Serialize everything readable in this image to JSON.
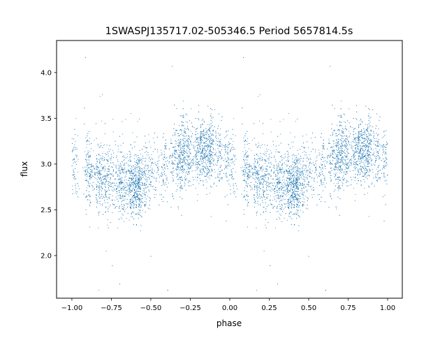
{
  "chart_data": {
    "type": "scatter",
    "title": "1SWASPJ135717.02-505346.5 Period 5657814.5s",
    "xlabel": "phase",
    "ylabel": "flux",
    "xlim": [
      -1.097,
      1.093
    ],
    "ylim": [
      1.534,
      4.35
    ],
    "xticks": [
      -1.0,
      -0.75,
      -0.5,
      -0.25,
      0.0,
      0.25,
      0.5,
      0.75,
      1.0
    ],
    "xtick_labels": [
      "−1.00",
      "−0.75",
      "−0.50",
      "−0.25",
      "0.00",
      "0.25",
      "0.50",
      "0.75",
      "1.00"
    ],
    "yticks": [
      2.0,
      2.5,
      3.0,
      3.5,
      4.0
    ],
    "ytick_labels": [
      "2.0",
      "2.5",
      "3.0",
      "3.5",
      "4.0"
    ],
    "grid": false,
    "marker_color": "#1f77b4",
    "approx_point_count": 9000,
    "phase_bins": [
      0.0,
      0.1,
      0.2,
      0.3,
      0.4,
      0.5,
      0.6,
      0.7,
      0.8,
      0.9,
      1.0
    ],
    "mean_flux": [
      3.0,
      2.92,
      2.85,
      2.78,
      2.76,
      2.88,
      3.0,
      3.1,
      3.15,
      3.15,
      2.98
    ],
    "flux_scatter_sd": 0.18
  }
}
